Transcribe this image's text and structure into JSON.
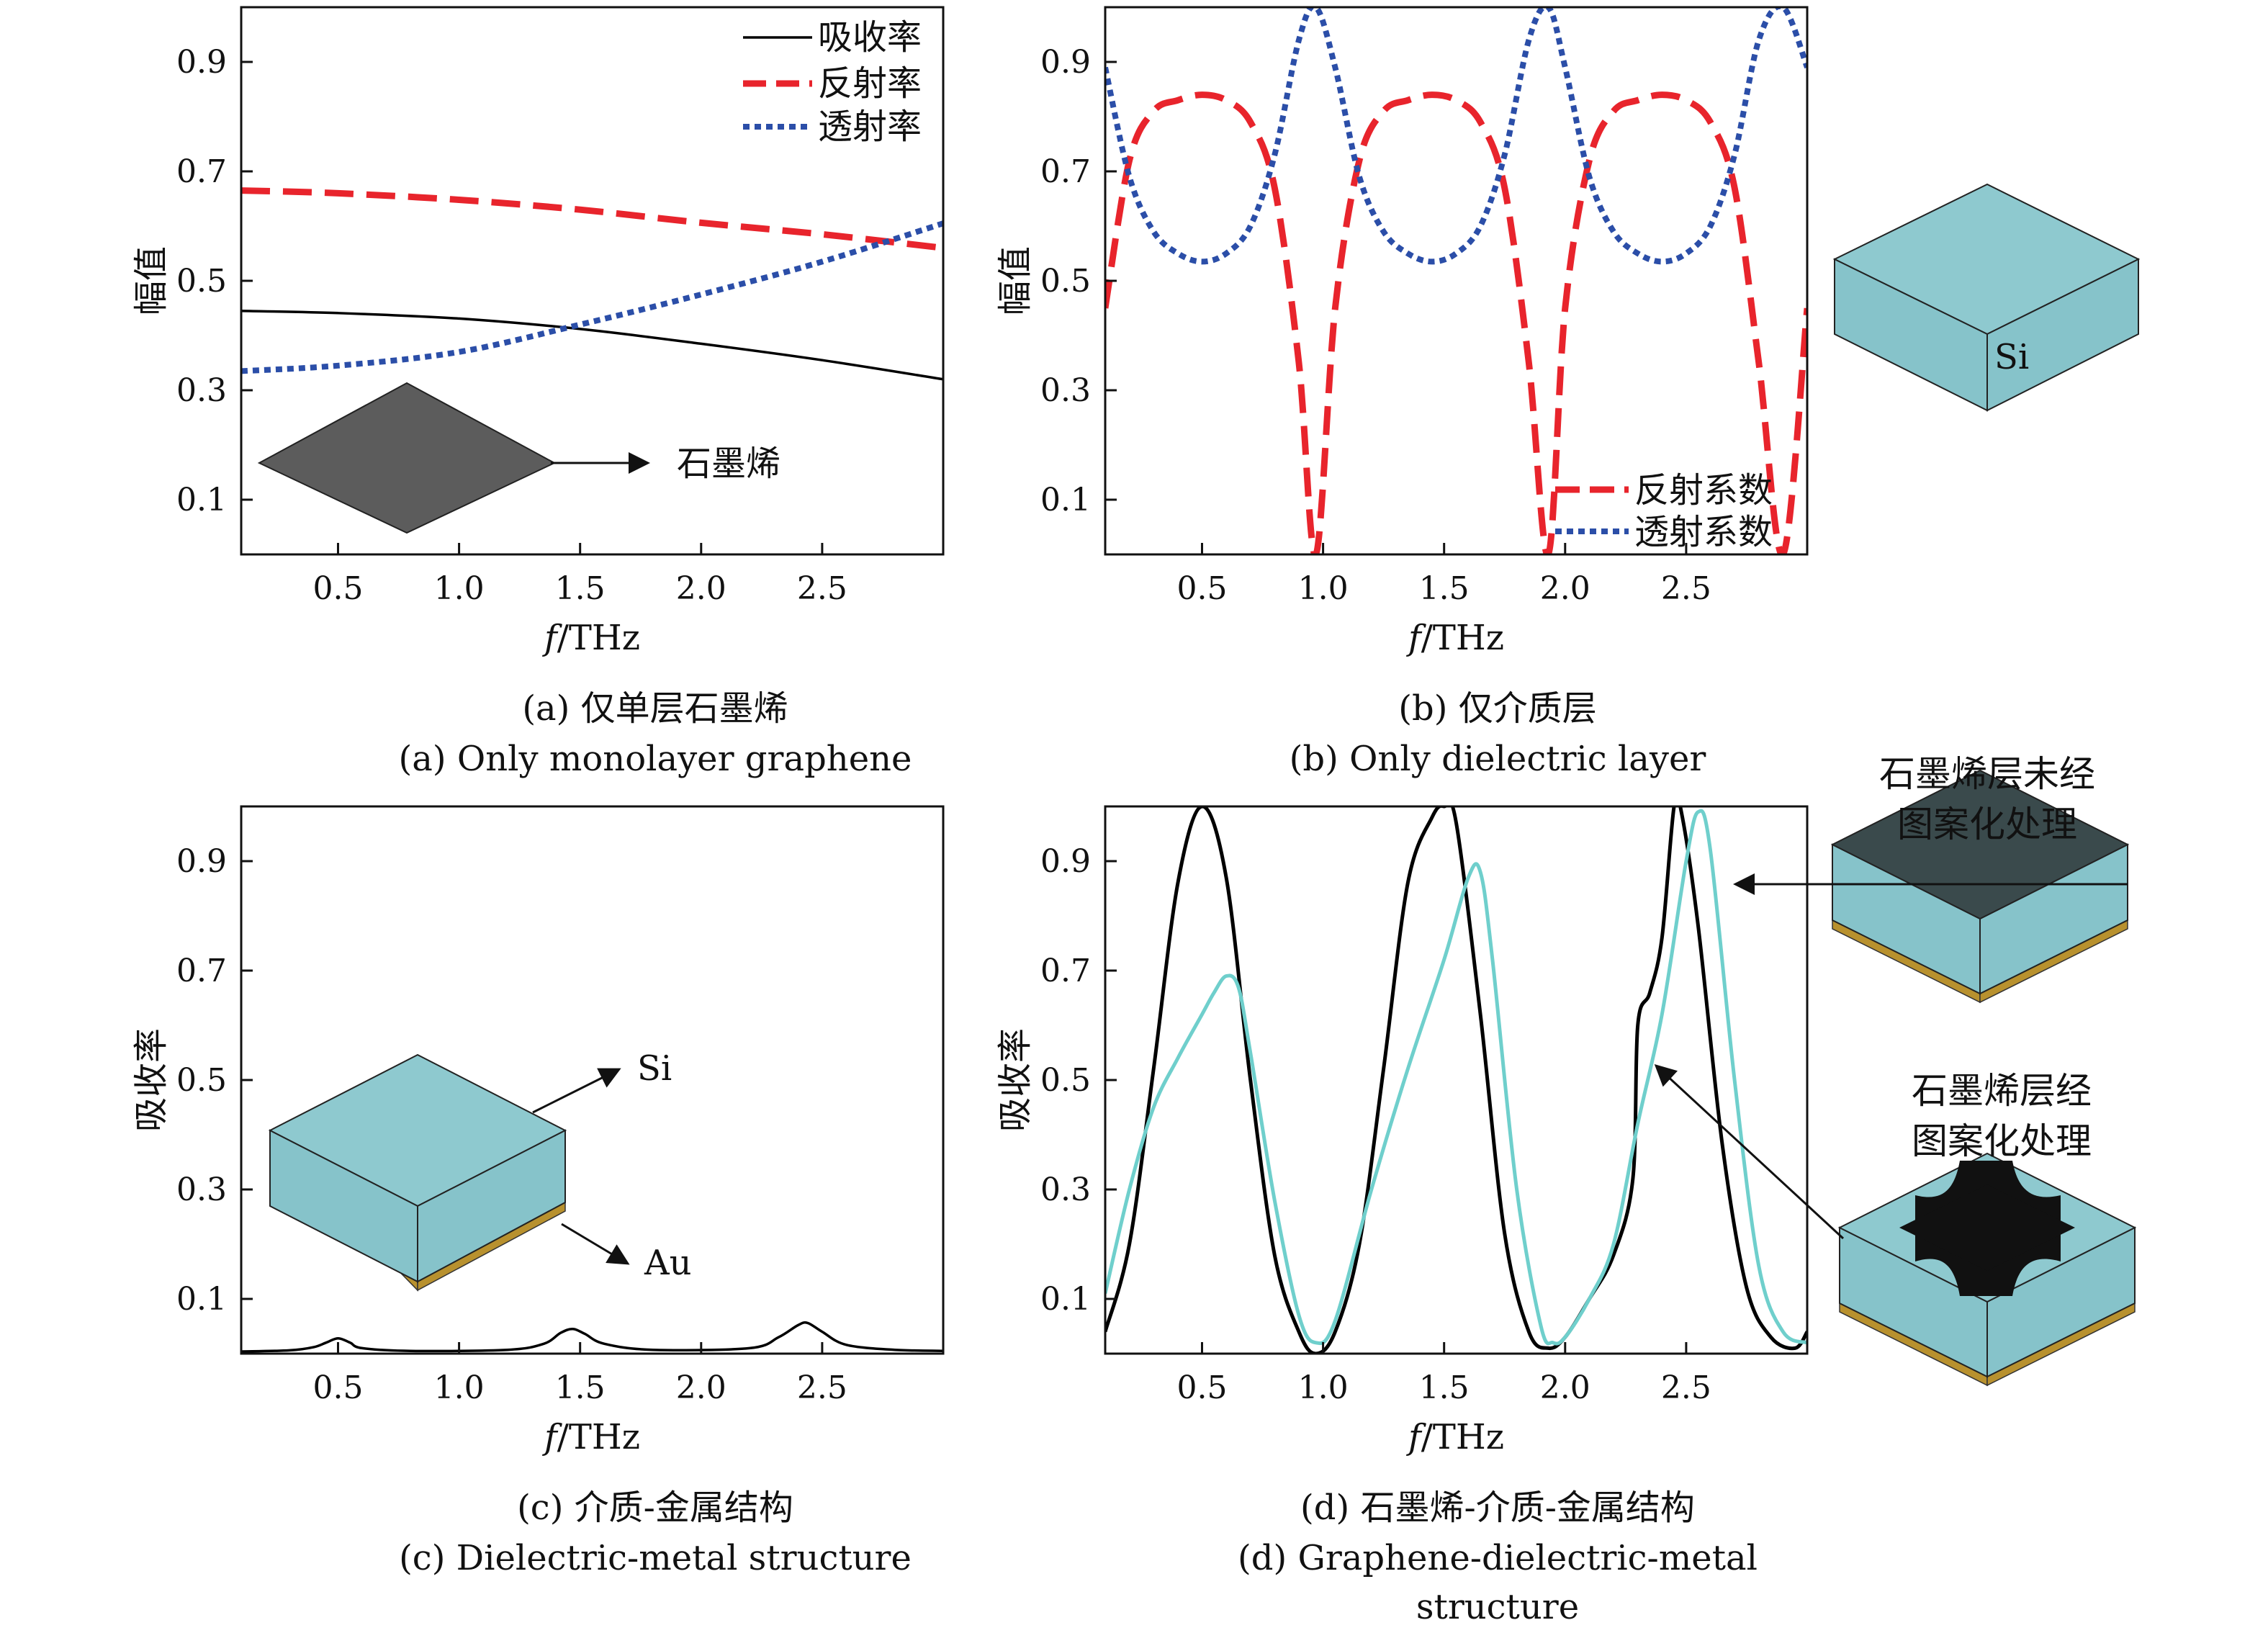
{
  "chart_data": [
    {
      "panel": "a",
      "type": "line",
      "xlabel_italic": "f",
      "xlabel_rest": "/THz",
      "ylabel": "幅值",
      "xlim": [
        0.1,
        3.0
      ],
      "ylim": [
        0.0,
        1.0
      ],
      "xticks": [
        "0.5",
        "1.0",
        "1.5",
        "2.0",
        "2.5"
      ],
      "yticks": [
        "0.1",
        "0.3",
        "0.5",
        "0.7",
        "0.9"
      ],
      "grid": false,
      "legend_position": "top-right",
      "series": [
        {
          "name": "吸收率",
          "color": "#000000",
          "style": "solid",
          "x": [
            0.1,
            0.5,
            1.0,
            1.5,
            2.0,
            2.5,
            3.0
          ],
          "y": [
            0.445,
            0.441,
            0.431,
            0.412,
            0.385,
            0.355,
            0.32
          ]
        },
        {
          "name": "反射率",
          "color": "#e8242c",
          "style": "dashed",
          "x": [
            0.1,
            0.5,
            1.0,
            1.5,
            2.0,
            2.5,
            3.0
          ],
          "y": [
            0.665,
            0.66,
            0.648,
            0.63,
            0.606,
            0.585,
            0.56
          ]
        },
        {
          "name": "透射率",
          "color": "#2b4ea8",
          "style": "dotted",
          "x": [
            0.1,
            0.5,
            1.0,
            1.5,
            2.0,
            2.5,
            3.0
          ],
          "y": [
            0.335,
            0.345,
            0.37,
            0.42,
            0.475,
            0.535,
            0.605
          ]
        }
      ],
      "annotation": "石墨烯",
      "caption_zh": "(a) 仅单层石墨烯",
      "caption_en": "(a) Only monolayer graphene"
    },
    {
      "panel": "b",
      "type": "line",
      "xlabel_italic": "f",
      "xlabel_rest": "/THz",
      "ylabel": "幅值",
      "xlim": [
        0.1,
        3.0
      ],
      "ylim": [
        0.0,
        1.0
      ],
      "xticks": [
        "0.5",
        "1.0",
        "1.5",
        "2.0",
        "2.5"
      ],
      "yticks": [
        "0.1",
        "0.3",
        "0.5",
        "0.7",
        "0.9"
      ],
      "grid": false,
      "legend_position": "bottom-right",
      "series": [
        {
          "name": "反射系数",
          "color": "#e8242c",
          "style": "dashed",
          "x": [
            0.1,
            0.2,
            0.3,
            0.4,
            0.5,
            0.6,
            0.7,
            0.8,
            0.9,
            0.97,
            1.05,
            1.15,
            1.25,
            1.35,
            1.45,
            1.55,
            1.65,
            1.75,
            1.85,
            1.93,
            2.0,
            2.1,
            2.2,
            2.3,
            2.4,
            2.5,
            2.6,
            2.7,
            2.8,
            2.9,
            3.0
          ],
          "y": [
            0.45,
            0.72,
            0.81,
            0.83,
            0.84,
            0.83,
            0.79,
            0.67,
            0.35,
            0.0,
            0.45,
            0.72,
            0.81,
            0.83,
            0.84,
            0.83,
            0.79,
            0.67,
            0.35,
            0.0,
            0.45,
            0.72,
            0.81,
            0.83,
            0.84,
            0.83,
            0.79,
            0.67,
            0.35,
            0.0,
            0.45
          ]
        },
        {
          "name": "透射系数",
          "color": "#2b4ea8",
          "style": "dotted",
          "x": [
            0.1,
            0.2,
            0.3,
            0.4,
            0.5,
            0.6,
            0.7,
            0.8,
            0.9,
            0.97,
            1.05,
            1.15,
            1.25,
            1.35,
            1.45,
            1.55,
            1.65,
            1.75,
            1.85,
            1.93,
            2.0,
            2.1,
            2.2,
            2.3,
            2.4,
            2.5,
            2.6,
            2.7,
            2.8,
            2.9,
            3.0
          ],
          "y": [
            0.89,
            0.69,
            0.59,
            0.55,
            0.535,
            0.55,
            0.6,
            0.73,
            0.94,
            1.0,
            0.89,
            0.69,
            0.59,
            0.55,
            0.535,
            0.55,
            0.6,
            0.73,
            0.94,
            1.0,
            0.89,
            0.69,
            0.59,
            0.55,
            0.535,
            0.55,
            0.6,
            0.73,
            0.94,
            1.0,
            0.89
          ]
        }
      ],
      "inset_label": "Si",
      "caption_zh": "(b) 仅介质层",
      "caption_en": "(b) Only dielectric layer"
    },
    {
      "panel": "c",
      "type": "line",
      "xlabel_italic": "f",
      "xlabel_rest": "/THz",
      "ylabel": "吸收率",
      "xlim": [
        0.1,
        3.0
      ],
      "ylim": [
        0.0,
        1.0
      ],
      "xticks": [
        "0.5",
        "1.0",
        "1.5",
        "2.0",
        "2.5"
      ],
      "yticks": [
        "0.1",
        "0.3",
        "0.5",
        "0.7",
        "0.9"
      ],
      "grid": false,
      "series": [
        {
          "name": "",
          "color": "#000000",
          "style": "solid",
          "x": [
            0.1,
            0.3,
            0.4,
            0.45,
            0.5,
            0.55,
            0.6,
            0.8,
            1.2,
            1.35,
            1.42,
            1.47,
            1.52,
            1.6,
            1.8,
            2.2,
            2.32,
            2.4,
            2.44,
            2.5,
            2.6,
            2.8,
            3.0
          ],
          "y": [
            0.004,
            0.006,
            0.012,
            0.02,
            0.028,
            0.02,
            0.01,
            0.005,
            0.007,
            0.018,
            0.038,
            0.045,
            0.036,
            0.018,
            0.007,
            0.01,
            0.03,
            0.052,
            0.056,
            0.04,
            0.016,
            0.007,
            0.005
          ]
        }
      ],
      "inset_labels": [
        "Si",
        "Au"
      ],
      "caption_zh": "(c) 介质-金属结构",
      "caption_en": "(c) Dielectric-metal structure"
    },
    {
      "panel": "d",
      "type": "line",
      "xlabel_italic": "f",
      "xlabel_rest": "/THz",
      "ylabel": "吸收率",
      "xlim": [
        0.1,
        3.0
      ],
      "ylim": [
        0.0,
        1.0
      ],
      "xticks": [
        "0.5",
        "1.0",
        "1.5",
        "2.0",
        "2.5"
      ],
      "yticks": [
        "0.1",
        "0.3",
        "0.5",
        "0.7",
        "0.9"
      ],
      "grid": false,
      "series": [
        {
          "name": "",
          "color": "#000000",
          "style": "solid",
          "x": [
            0.1,
            0.2,
            0.3,
            0.4,
            0.5,
            0.6,
            0.7,
            0.8,
            0.9,
            0.97,
            1.05,
            1.15,
            1.25,
            1.35,
            1.45,
            1.5,
            1.55,
            1.65,
            1.75,
            1.85,
            1.93,
            2.0,
            2.1,
            2.2,
            2.28,
            2.3,
            2.35,
            2.4,
            2.45,
            2.48,
            2.55,
            2.65,
            2.75,
            2.85,
            2.95,
            3.0
          ],
          "y": [
            0.04,
            0.2,
            0.52,
            0.86,
            1.0,
            0.87,
            0.5,
            0.18,
            0.04,
            0.0,
            0.04,
            0.2,
            0.52,
            0.86,
            0.98,
            1.0,
            0.97,
            0.62,
            0.22,
            0.04,
            0.01,
            0.03,
            0.1,
            0.18,
            0.32,
            0.6,
            0.66,
            0.76,
            1.0,
            0.99,
            0.78,
            0.38,
            0.12,
            0.03,
            0.01,
            0.04
          ]
        },
        {
          "name": "",
          "color": "#6fcfcc",
          "style": "solid",
          "x": [
            0.1,
            0.2,
            0.3,
            0.4,
            0.5,
            0.55,
            0.6,
            0.65,
            0.7,
            0.8,
            0.9,
            0.97,
            1.05,
            1.2,
            1.35,
            1.5,
            1.6,
            1.65,
            1.7,
            1.8,
            1.9,
            1.95,
            2.0,
            2.1,
            2.2,
            2.3,
            2.4,
            2.5,
            2.55,
            2.6,
            2.7,
            2.8,
            2.9,
            3.0
          ],
          "y": [
            0.11,
            0.3,
            0.45,
            0.54,
            0.62,
            0.66,
            0.69,
            0.67,
            0.55,
            0.28,
            0.07,
            0.02,
            0.06,
            0.3,
            0.52,
            0.72,
            0.87,
            0.88,
            0.72,
            0.3,
            0.05,
            0.02,
            0.03,
            0.1,
            0.2,
            0.42,
            0.62,
            0.9,
            0.99,
            0.92,
            0.5,
            0.16,
            0.04,
            0.02
          ]
        }
      ],
      "annotations": [
        "石墨烯层未经\n图案化处理",
        "石墨烯层经\n图案化处理"
      ],
      "caption_zh": "(d) 石墨烯-介质-金属结构",
      "caption_en": "(d) Graphene-dielectric-metal\nstructure"
    }
  ],
  "colors": {
    "si_top": "#8ec9cf",
    "si_side": "#86c3ca",
    "gold": "#b8912e",
    "graphene": "#5c5c5c",
    "graphene_dark": "#3a4a4c"
  }
}
